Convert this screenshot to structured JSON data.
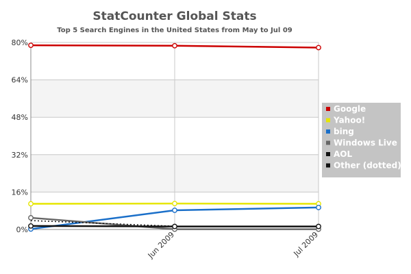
{
  "chart_data": {
    "type": "line",
    "title": "StatCounter Global Stats",
    "subtitle": "Top 5 Search Engines in the United States from May to Jul 09",
    "x": [
      "",
      "Jun 2009",
      "Jul 2009"
    ],
    "y_ticks": [
      "0%",
      "16%",
      "32%",
      "48%",
      "64%",
      "80%"
    ],
    "ylim": [
      0,
      80
    ],
    "grid": true,
    "legend_position": "right",
    "series": [
      {
        "name": "Google",
        "values": [
          78.8,
          78.6,
          77.8
        ],
        "color": "#cc0000",
        "dotted": false
      },
      {
        "name": "Yahoo!",
        "values": [
          11.0,
          11.1,
          11.0
        ],
        "color": "#e6e600",
        "dotted": false
      },
      {
        "name": "bing",
        "values": [
          0.2,
          8.2,
          9.4
        ],
        "color": "#1a6fc9",
        "dotted": false
      },
      {
        "name": "Windows Live",
        "values": [
          5.0,
          0.1,
          0.1
        ],
        "color": "#666666",
        "dotted": false
      },
      {
        "name": "AOL",
        "values": [
          1.5,
          1.3,
          1.3
        ],
        "color": "#111111",
        "dotted": false
      },
      {
        "name": "Other (dotted)",
        "values": [
          3.8,
          1.4,
          1.4
        ],
        "color": "#111111",
        "dotted": true
      }
    ]
  }
}
